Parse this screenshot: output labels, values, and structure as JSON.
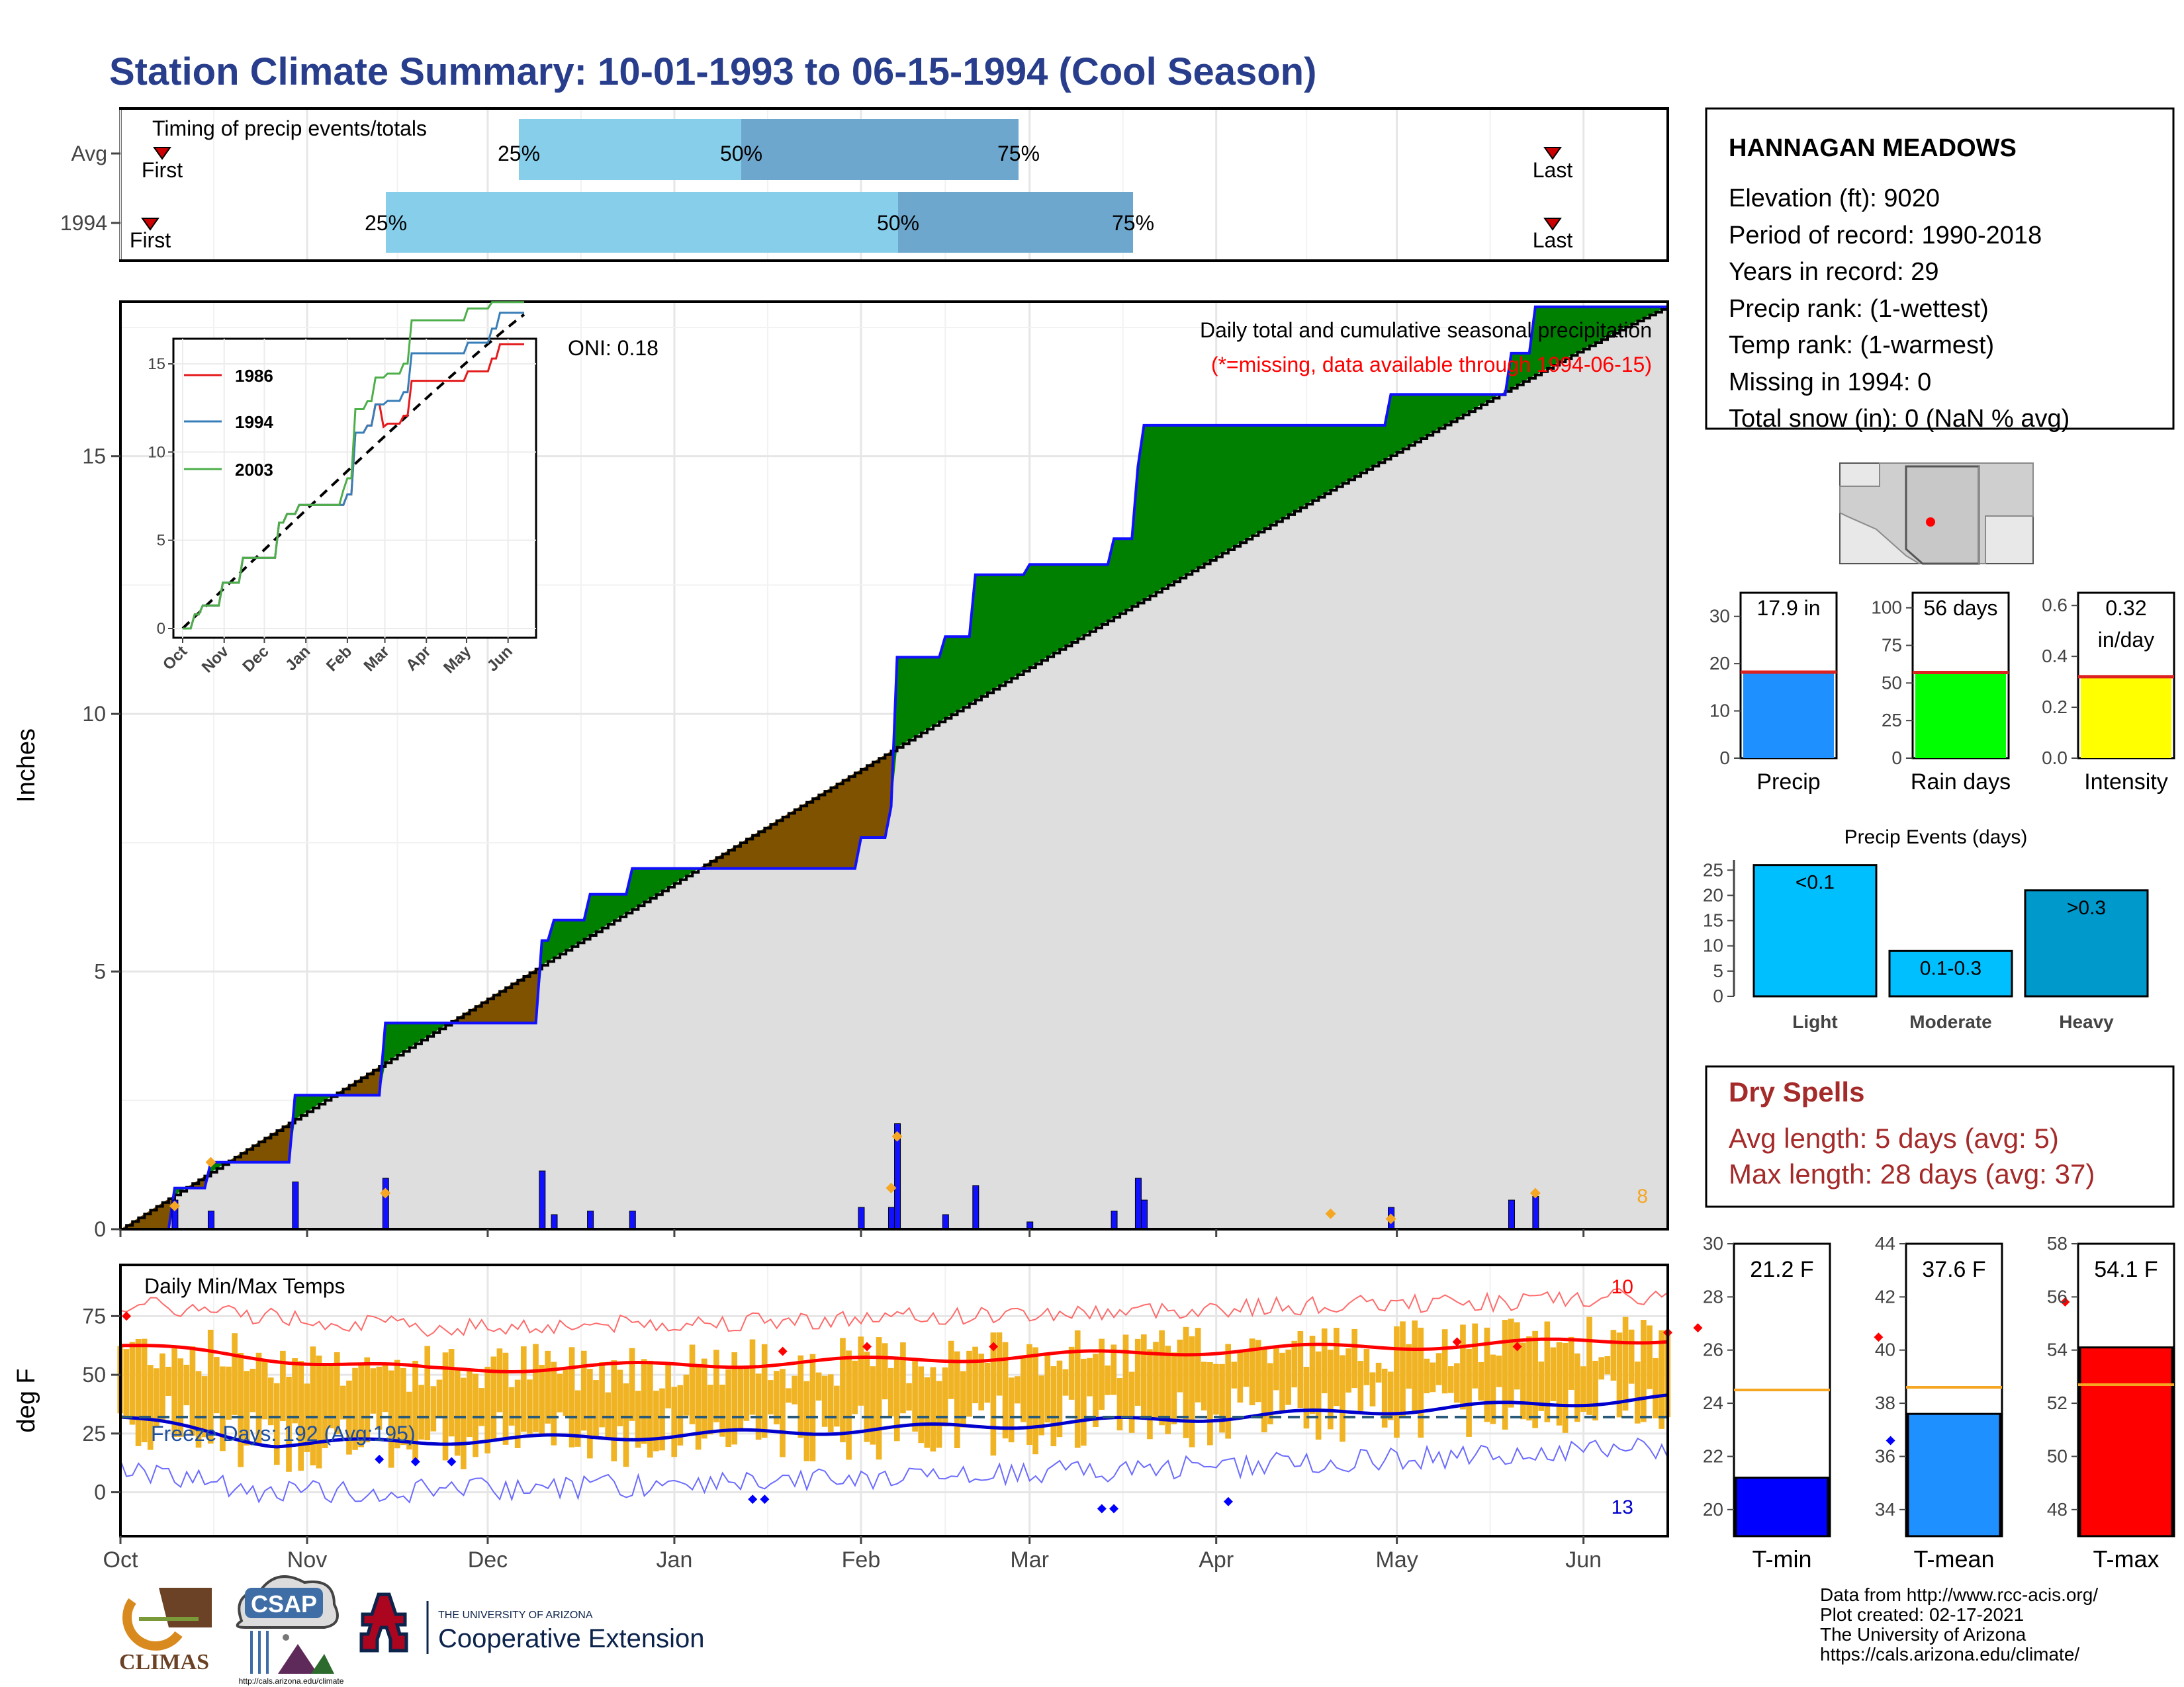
{
  "page_title": "Station Climate Summary: 10-01-1993 to 06-15-1994 (Cool Season)",
  "colors": {
    "precip_blue": "#1111ff",
    "green": "#008000",
    "brown": "#7f5200",
    "gray_fill": "#dedede",
    "tmin_bar": "#0000ff",
    "tmean_bar": "#1e90ff",
    "tmax_bar": "#ff0000",
    "avg_line": "#f5a623",
    "light_blue": "#87ceeb",
    "steel_blue": "#6ea7ce",
    "title": "#283e8c",
    "dry_red": "#a52a2a",
    "orange_bars": "#f0b323",
    "green_bright": "#00ff00",
    "yellow": "#ffff00",
    "light_events": "#00bfff",
    "heavy_events": "#0099cc"
  },
  "timing": {
    "heading": "Timing of precip events/totals",
    "rows": [
      {
        "label": "Avg",
        "first": "First",
        "last": "Last",
        "p25": "25%",
        "p50": "50%",
        "p75": "75%"
      },
      {
        "label": "1994",
        "first": "First",
        "last": "Last",
        "p25": "25%",
        "p50": "50%",
        "p75": "75%"
      }
    ]
  },
  "station": {
    "name": "HANNAGAN MEADOWS",
    "elevation": "Elevation (ft): 9020",
    "period": "Period of record: 1990-2018",
    "years": "Years in record: 29",
    "precip_rank": "Precip rank:  (1-wettest)",
    "temp_rank": "Temp rank:  (1-warmest)",
    "missing": "Missing in 1994: 0",
    "snow": "Total snow (in): 0 (NaN % avg)"
  },
  "map": {
    "icon": "arizona-map"
  },
  "main": {
    "ylabel": "Inches",
    "oni": "ONI: 0.18",
    "caption1": "Daily total and cumulative seasonal precipitation",
    "caption2": "(*=missing, data available through 1994-06-15)",
    "orange_count": "8",
    "yticks": [
      "0",
      "5",
      "10",
      "15"
    ],
    "months": [
      "Oct",
      "Nov",
      "Dec",
      "Jan",
      "Feb",
      "Mar",
      "Apr",
      "May",
      "Jun"
    ]
  },
  "temps": {
    "ylabel": "deg F",
    "title": "Daily Min/Max Temps",
    "freeze": "Freeze Days: 192 (Avg:195)",
    "red_count": "10",
    "blue_count": "13",
    "yticks": [
      "0",
      "25",
      "50",
      "75"
    ]
  },
  "inset": {
    "yticks": [
      "0",
      "5",
      "10",
      "15"
    ],
    "months": [
      "Oct",
      "Nov",
      "Dec",
      "Jan",
      "Feb",
      "Mar",
      "Apr",
      "May",
      "Jun"
    ],
    "legend": [
      {
        "label": "1986",
        "color": "#e41a1c"
      },
      {
        "label": "1994",
        "color": "#377eb8"
      },
      {
        "label": "2003",
        "color": "#4daf4a"
      }
    ]
  },
  "mini": [
    {
      "label": "Precip",
      "value_text": "17.9 in",
      "yticks": [
        "0",
        "10",
        "20",
        "30"
      ]
    },
    {
      "label": "Rain days",
      "value_text": "56 days",
      "yticks": [
        "0",
        "25",
        "50",
        "75",
        "100"
      ]
    },
    {
      "label": "Intensity",
      "value_text": "0.32",
      "value_text2": "in/day",
      "yticks": [
        "0.0",
        "0.2",
        "0.4",
        "0.6"
      ]
    }
  ],
  "events": {
    "title": "Precip Events (days)",
    "yticks": [
      "0",
      "5",
      "10",
      "15",
      "20",
      "25"
    ],
    "bars": [
      {
        "label": "Light",
        "text": "<0.1"
      },
      {
        "label": "Moderate",
        "text": "0.1-0.3"
      },
      {
        "label": "Heavy",
        "text": ">0.3"
      }
    ]
  },
  "dry": {
    "title": "Dry Spells",
    "avg": "Avg length: 5 days (avg: 5)",
    "max": "Max length: 28 days (avg: 37)"
  },
  "temp_bars": [
    {
      "label": "T-min",
      "value_text": "21.2 F",
      "yticks": [
        "20",
        "22",
        "24",
        "26",
        "28",
        "30"
      ]
    },
    {
      "label": "T-mean",
      "value_text": "37.6 F",
      "yticks": [
        "34",
        "36",
        "38",
        "40",
        "42",
        "44"
      ]
    },
    {
      "label": "T-max",
      "value_text": "54.1 F",
      "yticks": [
        "48",
        "50",
        "52",
        "54",
        "56",
        "58"
      ]
    }
  ],
  "footer": {
    "line1": "Data from http://www.rcc-acis.org/",
    "line2": "Plot created: 02-17-2021",
    "line3": "The University of Arizona",
    "line4": "https://cals.arizona.edu/climate/",
    "ua_top": "THE UNIVERSITY OF ARIZONA",
    "ua_bottom": "Cooperative Extension",
    "climas": "CLIMAS",
    "csap": "CSAP",
    "csap_url": "http://cals.arizona.edu/climate"
  },
  "chart_data": [
    {
      "type": "area",
      "title": "Daily total and cumulative seasonal precipitation",
      "ylabel": "Inches",
      "xlim": [
        "1993-10-01",
        "1994-06-15"
      ],
      "ylim": [
        0,
        18
      ],
      "grid": true,
      "series": [
        {
          "name": "1994",
          "x": [
            "1993-10-01",
            "1993-10-10",
            "1993-10-16",
            "1993-10-30",
            "1993-11-10",
            "1993-11-14",
            "1993-12-10",
            "1993-12-12",
            "1993-12-18",
            "1993-12-25",
            "1994-01-24",
            "1994-02-01",
            "1994-02-06",
            "1994-02-07",
            "1994-02-15",
            "1994-02-20",
            "1994-03-01",
            "1994-03-15",
            "1994-03-19",
            "1994-03-20",
            "1994-04-20",
            "1994-04-30",
            "1994-05-20",
            "1994-05-24",
            "1994-06-15"
          ],
          "y": [
            0.0,
            0.8,
            1.3,
            2.6,
            2.6,
            4.0,
            5.6,
            6.0,
            6.5,
            7.0,
            7.0,
            7.6,
            8.2,
            11.1,
            11.5,
            12.7,
            12.9,
            13.4,
            14.8,
            15.6,
            15.6,
            16.2,
            17.0,
            17.9,
            17.9
          ]
        }
      ]
    },
    {
      "type": "bar",
      "title": "Precip Events (days)",
      "categories": [
        "Light",
        "Moderate",
        "Heavy"
      ],
      "values": [
        26,
        9,
        21
      ],
      "ylim": [
        0,
        27
      ]
    }
  ]
}
